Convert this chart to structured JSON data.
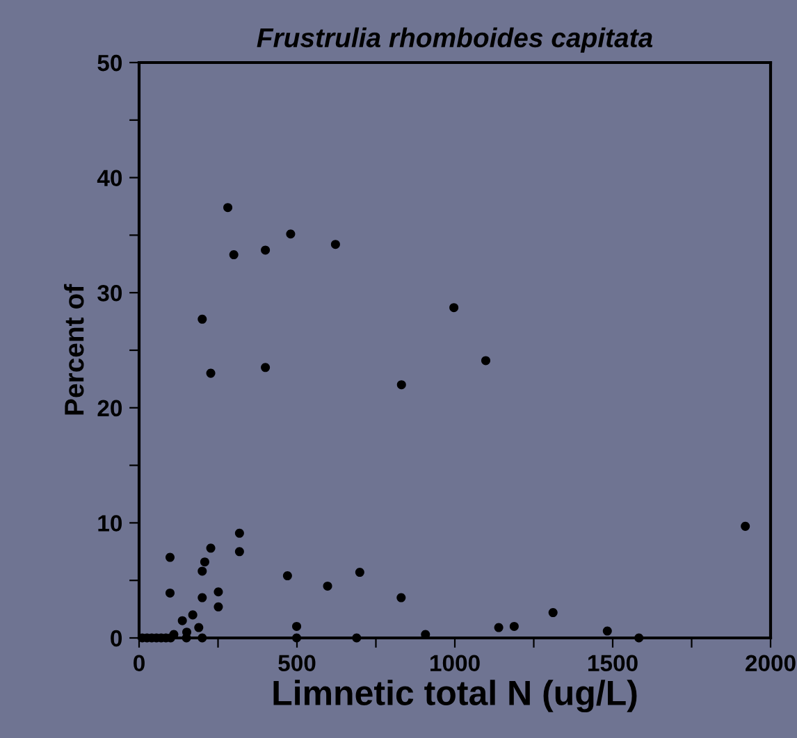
{
  "chart_data": {
    "type": "scatter",
    "title": "Frustrulia rhomboides capitata",
    "xlabel": "Limnetic total N (ug/L)",
    "ylabel": "Percent of",
    "x": [
      281,
      300,
      400,
      480,
      622,
      200,
      227,
      400,
      831,
      997,
      1098,
      98,
      98,
      227,
      208,
      200,
      318,
      318,
      251,
      251,
      200,
      170,
      137,
      189,
      151,
      110,
      470,
      597,
      699,
      830,
      499,
      499,
      689,
      907,
      1139,
      1188,
      1311,
      1483,
      1583,
      1920,
      10,
      25,
      40,
      55,
      70,
      85,
      100,
      150,
      200
    ],
    "values": [
      37.4,
      33.3,
      33.7,
      35.1,
      34.2,
      27.7,
      23.0,
      23.5,
      22.0,
      28.7,
      24.1,
      7.0,
      3.9,
      7.8,
      6.6,
      5.8,
      9.1,
      7.5,
      4.0,
      2.7,
      3.5,
      2.0,
      1.5,
      0.9,
      0.5,
      0.3,
      5.4,
      4.5,
      5.7,
      3.5,
      1.0,
      0,
      0,
      0.3,
      0.9,
      1.0,
      2.2,
      0.6,
      0,
      9.7,
      0,
      0,
      0,
      0,
      0,
      0,
      0,
      0,
      0
    ],
    "color": "#000000",
    "marker": "circle",
    "xlim": [
      0,
      2000
    ],
    "ylim": [
      0,
      50
    ],
    "xticks": [
      0,
      {
        "value": 250,
        "label": null
      },
      500,
      {
        "value": 750,
        "label": null
      },
      1000,
      {
        "value": 1250,
        "label": null
      },
      1500,
      {
        "value": 1750,
        "label": null
      },
      2000
    ],
    "yticks": [
      0,
      {
        "value": 5,
        "label": null
      },
      10,
      {
        "value": 15,
        "label": null
      },
      20,
      {
        "value": 25,
        "label": null
      },
      30,
      {
        "value": 35,
        "label": null
      },
      40,
      {
        "value": 45,
        "label": null
      },
      50
    ],
    "grid": false,
    "legend": false
  }
}
